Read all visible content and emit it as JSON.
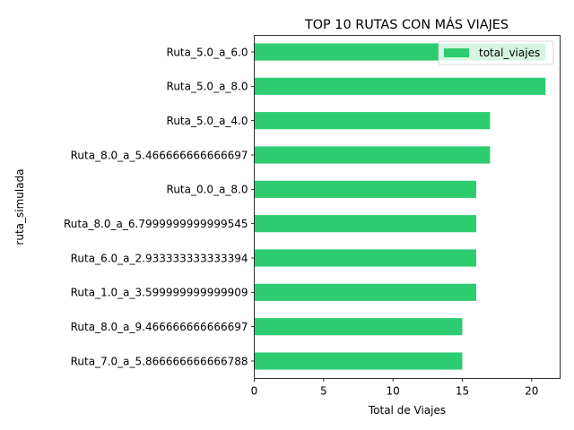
{
  "chart_data": {
    "type": "bar",
    "orientation": "horizontal",
    "title": "TOP 10 RUTAS CON MÁS VIAJES",
    "xlabel": "Total de Viajes",
    "ylabel": "ruta_simulada",
    "xlim": [
      0,
      22.05
    ],
    "xticks": [
      0,
      5,
      10,
      15,
      20
    ],
    "categories": [
      "Ruta_5.0_a_6.0",
      "Ruta_5.0_a_8.0",
      "Ruta_5.0_a_4.0",
      "Ruta_8.0_a_5.466666666666697",
      "Ruta_0.0_a_8.0",
      "Ruta_8.0_a_6.7999999999999545",
      "Ruta_6.0_a_2.933333333333394",
      "Ruta_1.0_a_3.599999999999909",
      "Ruta_8.0_a_9.466666666666697",
      "Ruta_7.0_a_5.866666666666788"
    ],
    "series": [
      {
        "name": "total_viajes",
        "color": "#2ecc71",
        "values": [
          21,
          21,
          17,
          17,
          16,
          16,
          16,
          16,
          15,
          15
        ]
      }
    ],
    "legend": {
      "placement": "top-right"
    },
    "grid": false
  }
}
